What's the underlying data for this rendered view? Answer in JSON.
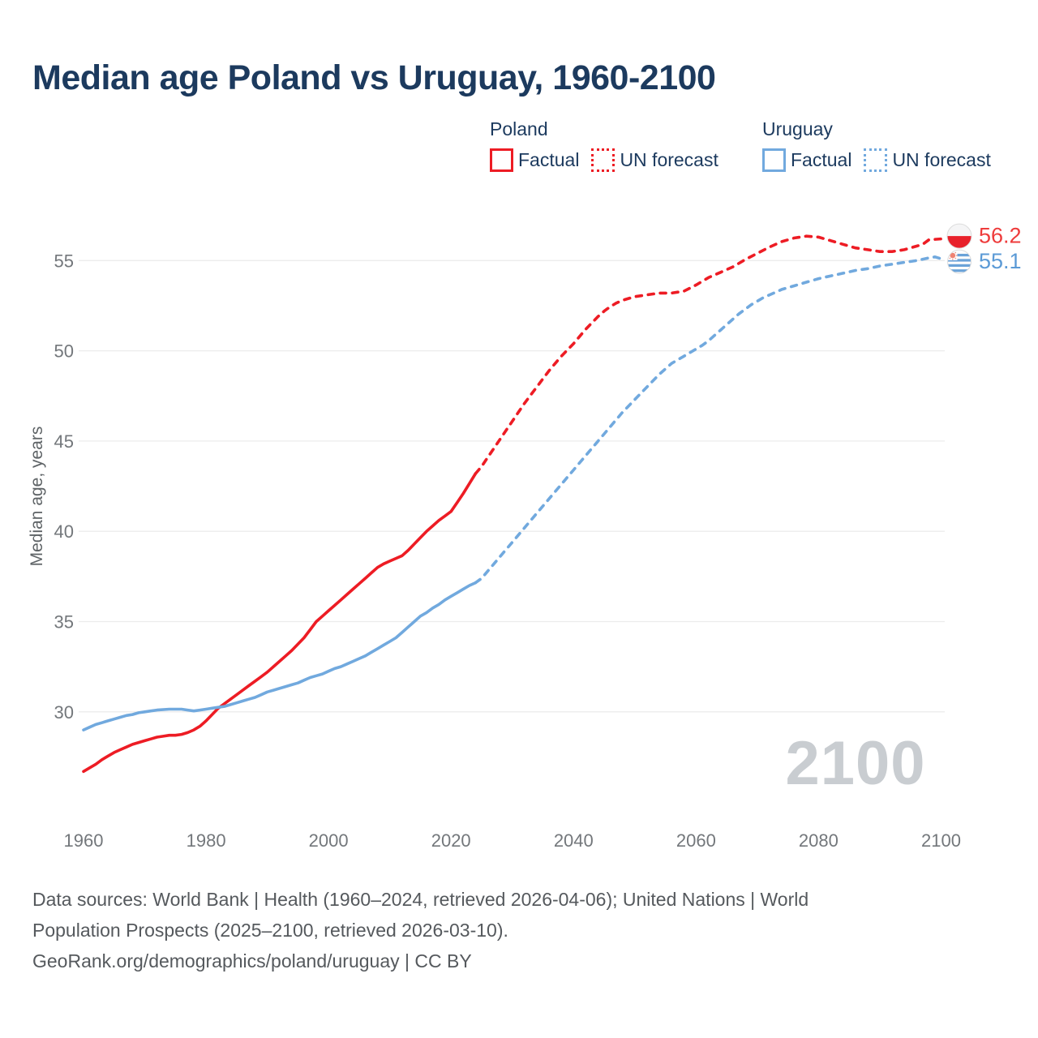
{
  "title": "Median age Poland vs Uruguay, 1960-2100",
  "legend": {
    "groups": [
      {
        "name": "Poland",
        "color": "#ed1c24",
        "items": [
          {
            "label": "Factual",
            "style": "solid"
          },
          {
            "label": "UN forecast",
            "style": "dotted"
          }
        ]
      },
      {
        "name": "Uruguay",
        "color": "#71a9de",
        "items": [
          {
            "label": "Factual",
            "style": "solid"
          },
          {
            "label": "UN forecast",
            "style": "dotted"
          }
        ]
      }
    ]
  },
  "colors": {
    "poland": "#ed1c24",
    "uruguay": "#71a9de",
    "poland_label": "#ee3b3b",
    "uruguay_label": "#5b9ad6",
    "watermark": "#c9cdd1",
    "gridline": "#ececec",
    "tick_text": "#73777b",
    "axis_title_text": "#5e6366"
  },
  "chart_data": {
    "type": "line",
    "title": "Median age Poland vs Uruguay, 1960-2100",
    "xlabel": "",
    "ylabel": "Median age, years",
    "xlim": [
      1960,
      2100
    ],
    "ylim": [
      25,
      58
    ],
    "xticks": [
      1960,
      1980,
      2000,
      2020,
      2040,
      2060,
      2080,
      2100
    ],
    "yticks": [
      30,
      35,
      40,
      45,
      50,
      55
    ],
    "grid": "horizontal",
    "legend_position": "top",
    "watermark": "2100",
    "series": [
      {
        "name": "Poland factual",
        "country": "Poland",
        "kind": "factual",
        "color": "#ed1c24",
        "dash": "solid",
        "points": [
          [
            1960,
            26.7
          ],
          [
            1961,
            26.9
          ],
          [
            1962,
            27.1
          ],
          [
            1963,
            27.35
          ],
          [
            1964,
            27.55
          ],
          [
            1965,
            27.75
          ],
          [
            1966,
            27.9
          ],
          [
            1967,
            28.05
          ],
          [
            1968,
            28.2
          ],
          [
            1969,
            28.3
          ],
          [
            1970,
            28.4
          ],
          [
            1971,
            28.5
          ],
          [
            1972,
            28.6
          ],
          [
            1973,
            28.65
          ],
          [
            1974,
            28.7
          ],
          [
            1975,
            28.7
          ],
          [
            1976,
            28.75
          ],
          [
            1977,
            28.85
          ],
          [
            1978,
            29.0
          ],
          [
            1979,
            29.2
          ],
          [
            1980,
            29.5
          ],
          [
            1981,
            29.85
          ],
          [
            1982,
            30.2
          ],
          [
            1983,
            30.45
          ],
          [
            1984,
            30.7
          ],
          [
            1985,
            30.95
          ],
          [
            1986,
            31.2
          ],
          [
            1987,
            31.45
          ],
          [
            1988,
            31.7
          ],
          [
            1989,
            31.95
          ],
          [
            1990,
            32.2
          ],
          [
            1991,
            32.5
          ],
          [
            1992,
            32.8
          ],
          [
            1993,
            33.1
          ],
          [
            1994,
            33.4
          ],
          [
            1995,
            33.75
          ],
          [
            1996,
            34.1
          ],
          [
            1997,
            34.55
          ],
          [
            1998,
            35.0
          ],
          [
            1999,
            35.3
          ],
          [
            2000,
            35.6
          ],
          [
            2001,
            35.9
          ],
          [
            2002,
            36.2
          ],
          [
            2003,
            36.5
          ],
          [
            2004,
            36.8
          ],
          [
            2005,
            37.1
          ],
          [
            2006,
            37.4
          ],
          [
            2007,
            37.7
          ],
          [
            2008,
            38.0
          ],
          [
            2009,
            38.2
          ],
          [
            2010,
            38.35
          ],
          [
            2011,
            38.5
          ],
          [
            2012,
            38.65
          ],
          [
            2013,
            38.95
          ],
          [
            2014,
            39.3
          ],
          [
            2015,
            39.65
          ],
          [
            2016,
            40.0
          ],
          [
            2017,
            40.3
          ],
          [
            2018,
            40.6
          ],
          [
            2019,
            40.85
          ],
          [
            2020,
            41.1
          ],
          [
            2021,
            41.6
          ],
          [
            2022,
            42.1
          ],
          [
            2023,
            42.65
          ],
          [
            2024,
            43.2
          ]
        ]
      },
      {
        "name": "Poland UN forecast",
        "country": "Poland",
        "kind": "forecast",
        "color": "#ed1c24",
        "dash": "dashed",
        "points": [
          [
            2024,
            43.2
          ],
          [
            2025,
            43.6
          ],
          [
            2026,
            44.1
          ],
          [
            2027,
            44.6
          ],
          [
            2028,
            45.1
          ],
          [
            2029,
            45.6
          ],
          [
            2030,
            46.1
          ],
          [
            2031,
            46.6
          ],
          [
            2032,
            47.1
          ],
          [
            2033,
            47.55
          ],
          [
            2034,
            48.0
          ],
          [
            2035,
            48.45
          ],
          [
            2036,
            48.9
          ],
          [
            2037,
            49.3
          ],
          [
            2038,
            49.7
          ],
          [
            2039,
            50.05
          ],
          [
            2040,
            50.4
          ],
          [
            2041,
            50.8
          ],
          [
            2042,
            51.2
          ],
          [
            2043,
            51.55
          ],
          [
            2044,
            51.9
          ],
          [
            2045,
            52.2
          ],
          [
            2046,
            52.45
          ],
          [
            2047,
            52.65
          ],
          [
            2048,
            52.8
          ],
          [
            2049,
            52.9
          ],
          [
            2050,
            53.0
          ],
          [
            2052,
            53.1
          ],
          [
            2054,
            53.2
          ],
          [
            2056,
            53.2
          ],
          [
            2058,
            53.3
          ],
          [
            2060,
            53.65
          ],
          [
            2062,
            54.05
          ],
          [
            2064,
            54.35
          ],
          [
            2066,
            54.65
          ],
          [
            2068,
            55.05
          ],
          [
            2070,
            55.4
          ],
          [
            2072,
            55.75
          ],
          [
            2074,
            56.05
          ],
          [
            2076,
            56.25
          ],
          [
            2078,
            56.35
          ],
          [
            2080,
            56.3
          ],
          [
            2082,
            56.1
          ],
          [
            2084,
            55.9
          ],
          [
            2086,
            55.7
          ],
          [
            2088,
            55.6
          ],
          [
            2090,
            55.5
          ],
          [
            2092,
            55.5
          ],
          [
            2094,
            55.6
          ],
          [
            2096,
            55.8
          ],
          [
            2097,
            55.9
          ],
          [
            2098,
            56.15
          ],
          [
            2100,
            56.2
          ]
        ]
      },
      {
        "name": "Uruguay factual",
        "country": "Uruguay",
        "kind": "factual",
        "color": "#71a9de",
        "dash": "solid",
        "points": [
          [
            1960,
            29.0
          ],
          [
            1961,
            29.15
          ],
          [
            1962,
            29.3
          ],
          [
            1963,
            29.4
          ],
          [
            1964,
            29.5
          ],
          [
            1965,
            29.6
          ],
          [
            1966,
            29.7
          ],
          [
            1967,
            29.8
          ],
          [
            1968,
            29.85
          ],
          [
            1969,
            29.95
          ],
          [
            1970,
            30.0
          ],
          [
            1971,
            30.05
          ],
          [
            1972,
            30.1
          ],
          [
            1974,
            30.15
          ],
          [
            1976,
            30.15
          ],
          [
            1977,
            30.1
          ],
          [
            1978,
            30.05
          ],
          [
            1979,
            30.1
          ],
          [
            1980,
            30.15
          ],
          [
            1981,
            30.2
          ],
          [
            1982,
            30.25
          ],
          [
            1983,
            30.3
          ],
          [
            1984,
            30.4
          ],
          [
            1985,
            30.5
          ],
          [
            1986,
            30.6
          ],
          [
            1987,
            30.7
          ],
          [
            1988,
            30.8
          ],
          [
            1989,
            30.95
          ],
          [
            1990,
            31.1
          ],
          [
            1991,
            31.2
          ],
          [
            1992,
            31.3
          ],
          [
            1993,
            31.4
          ],
          [
            1994,
            31.5
          ],
          [
            1995,
            31.6
          ],
          [
            1996,
            31.75
          ],
          [
            1997,
            31.9
          ],
          [
            1998,
            32.0
          ],
          [
            1999,
            32.1
          ],
          [
            2000,
            32.25
          ],
          [
            2001,
            32.4
          ],
          [
            2002,
            32.5
          ],
          [
            2003,
            32.65
          ],
          [
            2004,
            32.8
          ],
          [
            2005,
            32.95
          ],
          [
            2006,
            33.1
          ],
          [
            2007,
            33.3
          ],
          [
            2008,
            33.5
          ],
          [
            2009,
            33.7
          ],
          [
            2010,
            33.9
          ],
          [
            2011,
            34.1
          ],
          [
            2012,
            34.4
          ],
          [
            2013,
            34.7
          ],
          [
            2014,
            35.0
          ],
          [
            2015,
            35.3
          ],
          [
            2016,
            35.5
          ],
          [
            2017,
            35.75
          ],
          [
            2018,
            35.95
          ],
          [
            2019,
            36.2
          ],
          [
            2020,
            36.4
          ],
          [
            2021,
            36.6
          ],
          [
            2022,
            36.8
          ],
          [
            2023,
            37.0
          ],
          [
            2024,
            37.15
          ]
        ]
      },
      {
        "name": "Uruguay UN forecast",
        "country": "Uruguay",
        "kind": "forecast",
        "color": "#71a9de",
        "dash": "dashed",
        "points": [
          [
            2024,
            37.15
          ],
          [
            2025,
            37.4
          ],
          [
            2026,
            37.8
          ],
          [
            2027,
            38.2
          ],
          [
            2028,
            38.6
          ],
          [
            2029,
            39.0
          ],
          [
            2030,
            39.4
          ],
          [
            2031,
            39.8
          ],
          [
            2032,
            40.2
          ],
          [
            2033,
            40.6
          ],
          [
            2034,
            41.0
          ],
          [
            2035,
            41.4
          ],
          [
            2036,
            41.8
          ],
          [
            2037,
            42.2
          ],
          [
            2038,
            42.6
          ],
          [
            2039,
            43.0
          ],
          [
            2040,
            43.4
          ],
          [
            2041,
            43.8
          ],
          [
            2042,
            44.2
          ],
          [
            2043,
            44.6
          ],
          [
            2044,
            45.0
          ],
          [
            2045,
            45.4
          ],
          [
            2046,
            45.8
          ],
          [
            2047,
            46.2
          ],
          [
            2048,
            46.6
          ],
          [
            2049,
            46.95
          ],
          [
            2050,
            47.3
          ],
          [
            2051,
            47.65
          ],
          [
            2052,
            48.0
          ],
          [
            2053,
            48.35
          ],
          [
            2054,
            48.7
          ],
          [
            2055,
            49.0
          ],
          [
            2056,
            49.3
          ],
          [
            2057,
            49.5
          ],
          [
            2058,
            49.7
          ],
          [
            2059,
            49.9
          ],
          [
            2060,
            50.1
          ],
          [
            2061,
            50.3
          ],
          [
            2062,
            50.55
          ],
          [
            2063,
            50.85
          ],
          [
            2064,
            51.15
          ],
          [
            2065,
            51.45
          ],
          [
            2066,
            51.75
          ],
          [
            2067,
            52.05
          ],
          [
            2068,
            52.3
          ],
          [
            2069,
            52.55
          ],
          [
            2070,
            52.75
          ],
          [
            2071,
            52.95
          ],
          [
            2072,
            53.1
          ],
          [
            2073,
            53.25
          ],
          [
            2074,
            53.4
          ],
          [
            2075,
            53.5
          ],
          [
            2076,
            53.6
          ],
          [
            2077,
            53.7
          ],
          [
            2078,
            53.8
          ],
          [
            2079,
            53.9
          ],
          [
            2080,
            54.0
          ],
          [
            2082,
            54.15
          ],
          [
            2084,
            54.3
          ],
          [
            2086,
            54.45
          ],
          [
            2088,
            54.55
          ],
          [
            2090,
            54.7
          ],
          [
            2092,
            54.8
          ],
          [
            2094,
            54.9
          ],
          [
            2096,
            55.0
          ],
          [
            2098,
            55.15
          ],
          [
            2099,
            55.2
          ],
          [
            2100,
            55.1
          ]
        ]
      }
    ],
    "end_labels": [
      {
        "country": "Poland",
        "value": 56.2,
        "flag": "poland",
        "color": "#ee3b3b"
      },
      {
        "country": "Uruguay",
        "value": 55.1,
        "flag": "uruguay",
        "color": "#5b9ad6"
      }
    ]
  },
  "footer": {
    "lines": [
      "Data sources: World Bank | Health (1960–2024, retrieved 2026-04-06); United Nations | World",
      "Population Prospects (2025–2100, retrieved 2026-03-10).",
      "GeoRank.org/demographics/poland/uruguay | CC BY"
    ]
  }
}
